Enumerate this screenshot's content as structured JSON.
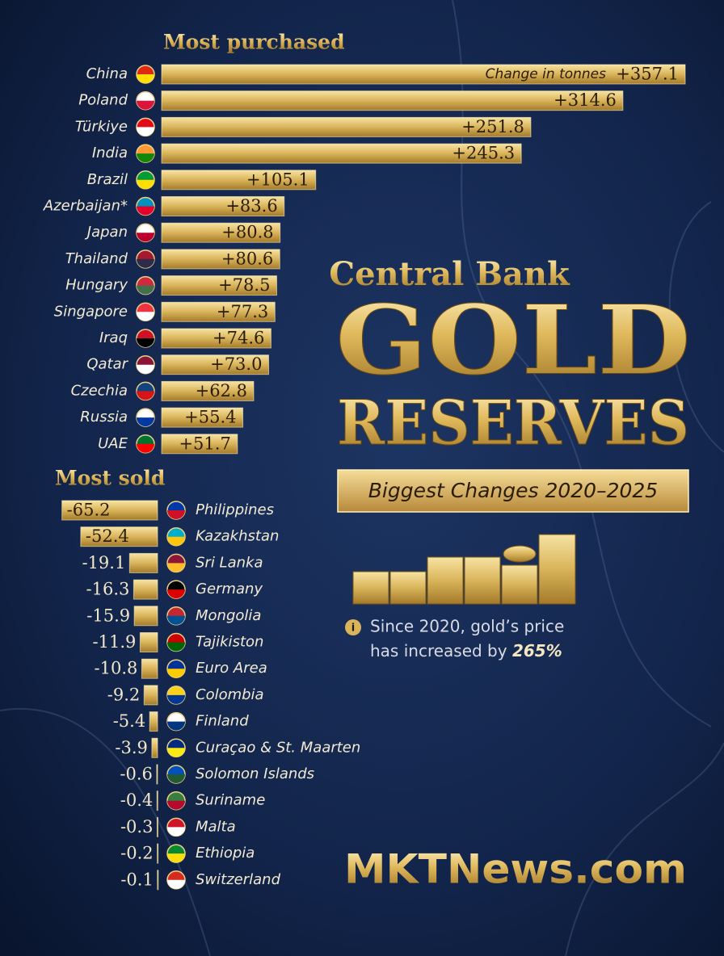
{
  "chart_data": [
    {
      "type": "bar",
      "orientation": "horizontal",
      "title": "Most purchased",
      "value_axis_label": "Change in tonnes",
      "categories": [
        "China",
        "Poland",
        "Türkiye",
        "India",
        "Brazil",
        "Azerbaijan*",
        "Japan",
        "Thailand",
        "Hungary",
        "Singapore",
        "Iraq",
        "Qatar",
        "Czechia",
        "Russia",
        "UAE"
      ],
      "values": [
        357.1,
        314.6,
        251.8,
        245.3,
        105.1,
        83.6,
        80.8,
        80.6,
        78.5,
        77.3,
        74.6,
        73.0,
        62.8,
        55.4,
        51.7
      ],
      "value_labels": [
        "+357.1",
        "+314.6",
        "+251.8",
        "+245.3",
        "+105.1",
        "+83.6",
        "+80.8",
        "+80.6",
        "+78.5",
        "+77.3",
        "+74.6",
        "+73.0",
        "+62.8",
        "+55.4",
        "+51.7"
      ],
      "color": "#d9b45a"
    },
    {
      "type": "bar",
      "orientation": "horizontal",
      "title": "Most sold",
      "categories": [
        "Philippines",
        "Kazakhstan",
        "Sri Lanka",
        "Germany",
        "Mongolia",
        "Tajikiston",
        "Euro Area",
        "Colombia",
        "Finland",
        "Curaçao & St. Maarten",
        "Solomon Islands",
        "Suriname",
        "Malta",
        "Ethiopia",
        "Switzerland"
      ],
      "values": [
        -65.2,
        -52.4,
        -19.1,
        -16.3,
        -15.9,
        -11.9,
        -10.8,
        -9.2,
        -5.4,
        -3.9,
        -0.6,
        -0.4,
        -0.3,
        -0.2,
        -0.1
      ],
      "color": "#c9a24a"
    }
  ],
  "header": {
    "kicker": "Central Bank",
    "title_1": "GOLD",
    "title_2": "RESERVES",
    "tagline": "Biggest Changes 2020–2025"
  },
  "note": {
    "line_1": "Since 2020, gold’s price",
    "line_2": "has increased by",
    "highlight": "265%"
  },
  "brand": "MKTNews.com"
}
